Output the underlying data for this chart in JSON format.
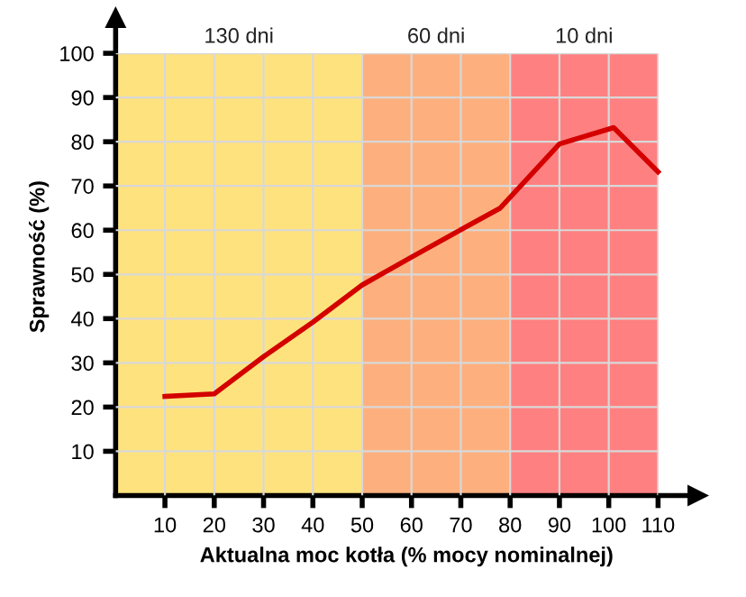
{
  "chart_data": {
    "type": "line",
    "xlabel": "Aktualna moc kotła (% mocy nominalnej)",
    "ylabel": "Sprawność (%)",
    "x": [
      10,
      20,
      30,
      40,
      50,
      60,
      70,
      78,
      90,
      101,
      110
    ],
    "series": [
      {
        "color": "#d40000",
        "values": [
          22.4,
          23,
          31.4,
          39.2,
          47.6,
          53.9,
          60.1,
          65,
          79.5,
          83.2,
          73.2
        ]
      }
    ],
    "xlim": [
      0,
      118
    ],
    "ylim": [
      0,
      108
    ],
    "xticks": [
      10,
      20,
      30,
      40,
      50,
      60,
      70,
      80,
      90,
      100,
      110
    ],
    "yticks": [
      10,
      20,
      30,
      40,
      50,
      60,
      70,
      80,
      90,
      100
    ],
    "bands": [
      {
        "axis": "x",
        "from": 0,
        "to": 50,
        "label": "130 dni",
        "color": "#fee27e"
      },
      {
        "axis": "x",
        "from": 50,
        "to": 80,
        "label": "60 dni",
        "color": "#fdb07e"
      },
      {
        "axis": "x",
        "from": 80,
        "to": 110,
        "label": "10 dni",
        "color": "#ff8080"
      }
    ],
    "grid": true,
    "marker": "none",
    "line_style": "solid"
  }
}
